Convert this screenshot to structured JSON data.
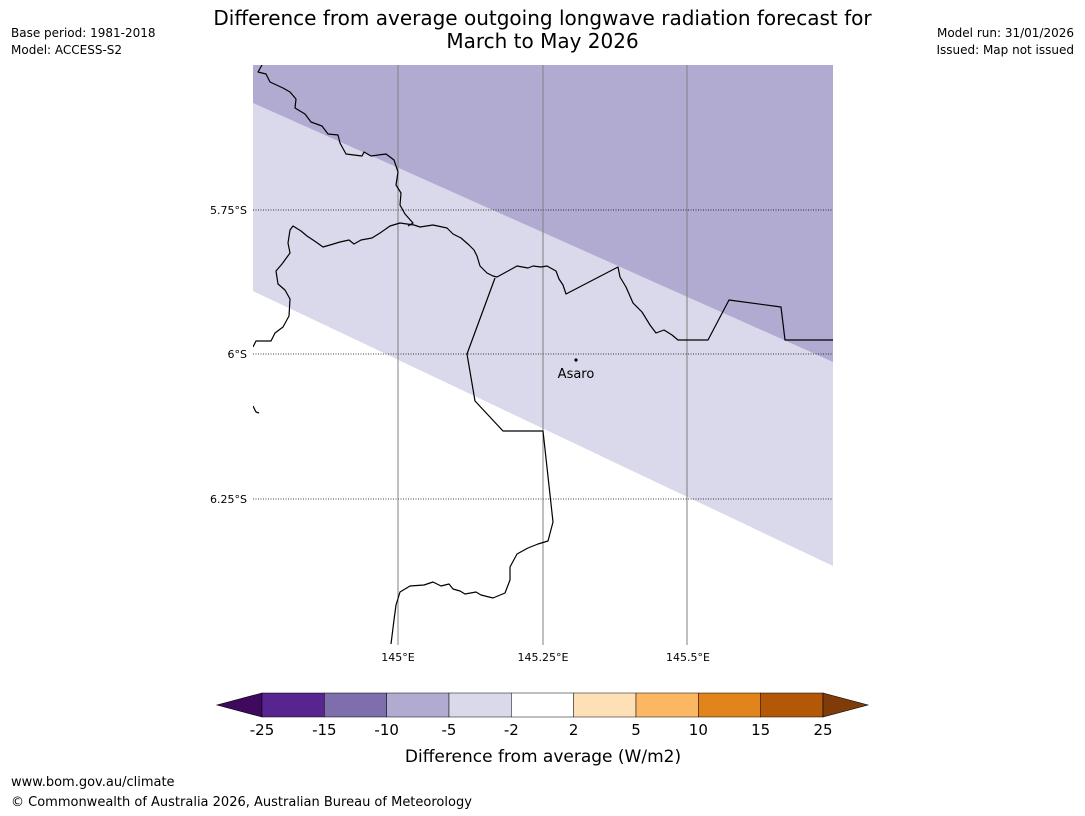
{
  "header": {
    "title_line1": "Difference from average outgoing longwave radiation forecast for",
    "title_line2": "March to May 2026",
    "base_period": "Base period: 1981-2018",
    "model": "Model: ACCESS-S2",
    "model_run": "Model run: 31/01/2026",
    "issued": "Issued: Map not issued"
  },
  "map": {
    "lat_labels": [
      "5.75°S",
      "6°S",
      "6.25°S"
    ],
    "lon_labels": [
      "145°E",
      "145.25°E",
      "145.5°E"
    ],
    "place_label": "Asaro",
    "colors": {
      "band_minus10_minus5": "#b1abd2",
      "band_minus5_minus2": "#d9d9eb",
      "coastline": "#000000",
      "gridline": "#808080"
    }
  },
  "colorbar": {
    "label": "Difference from average (W/m2)",
    "ticks": [
      "-25",
      "-15",
      "-10",
      "-5",
      "-2",
      "2",
      "5",
      "10",
      "15",
      "25"
    ],
    "colors": [
      "#3f0a5e",
      "#582490",
      "#7f6eac",
      "#b1abd2",
      "#d9d9eb",
      "#ffffff",
      "#fde0b6",
      "#fcb763",
      "#e2841c",
      "#b35806",
      "#7f3b08"
    ]
  },
  "footer": {
    "url": "www.bom.gov.au/climate",
    "copyright": "© Commonwealth of Australia 2026, Australian Bureau of Meteorology"
  }
}
